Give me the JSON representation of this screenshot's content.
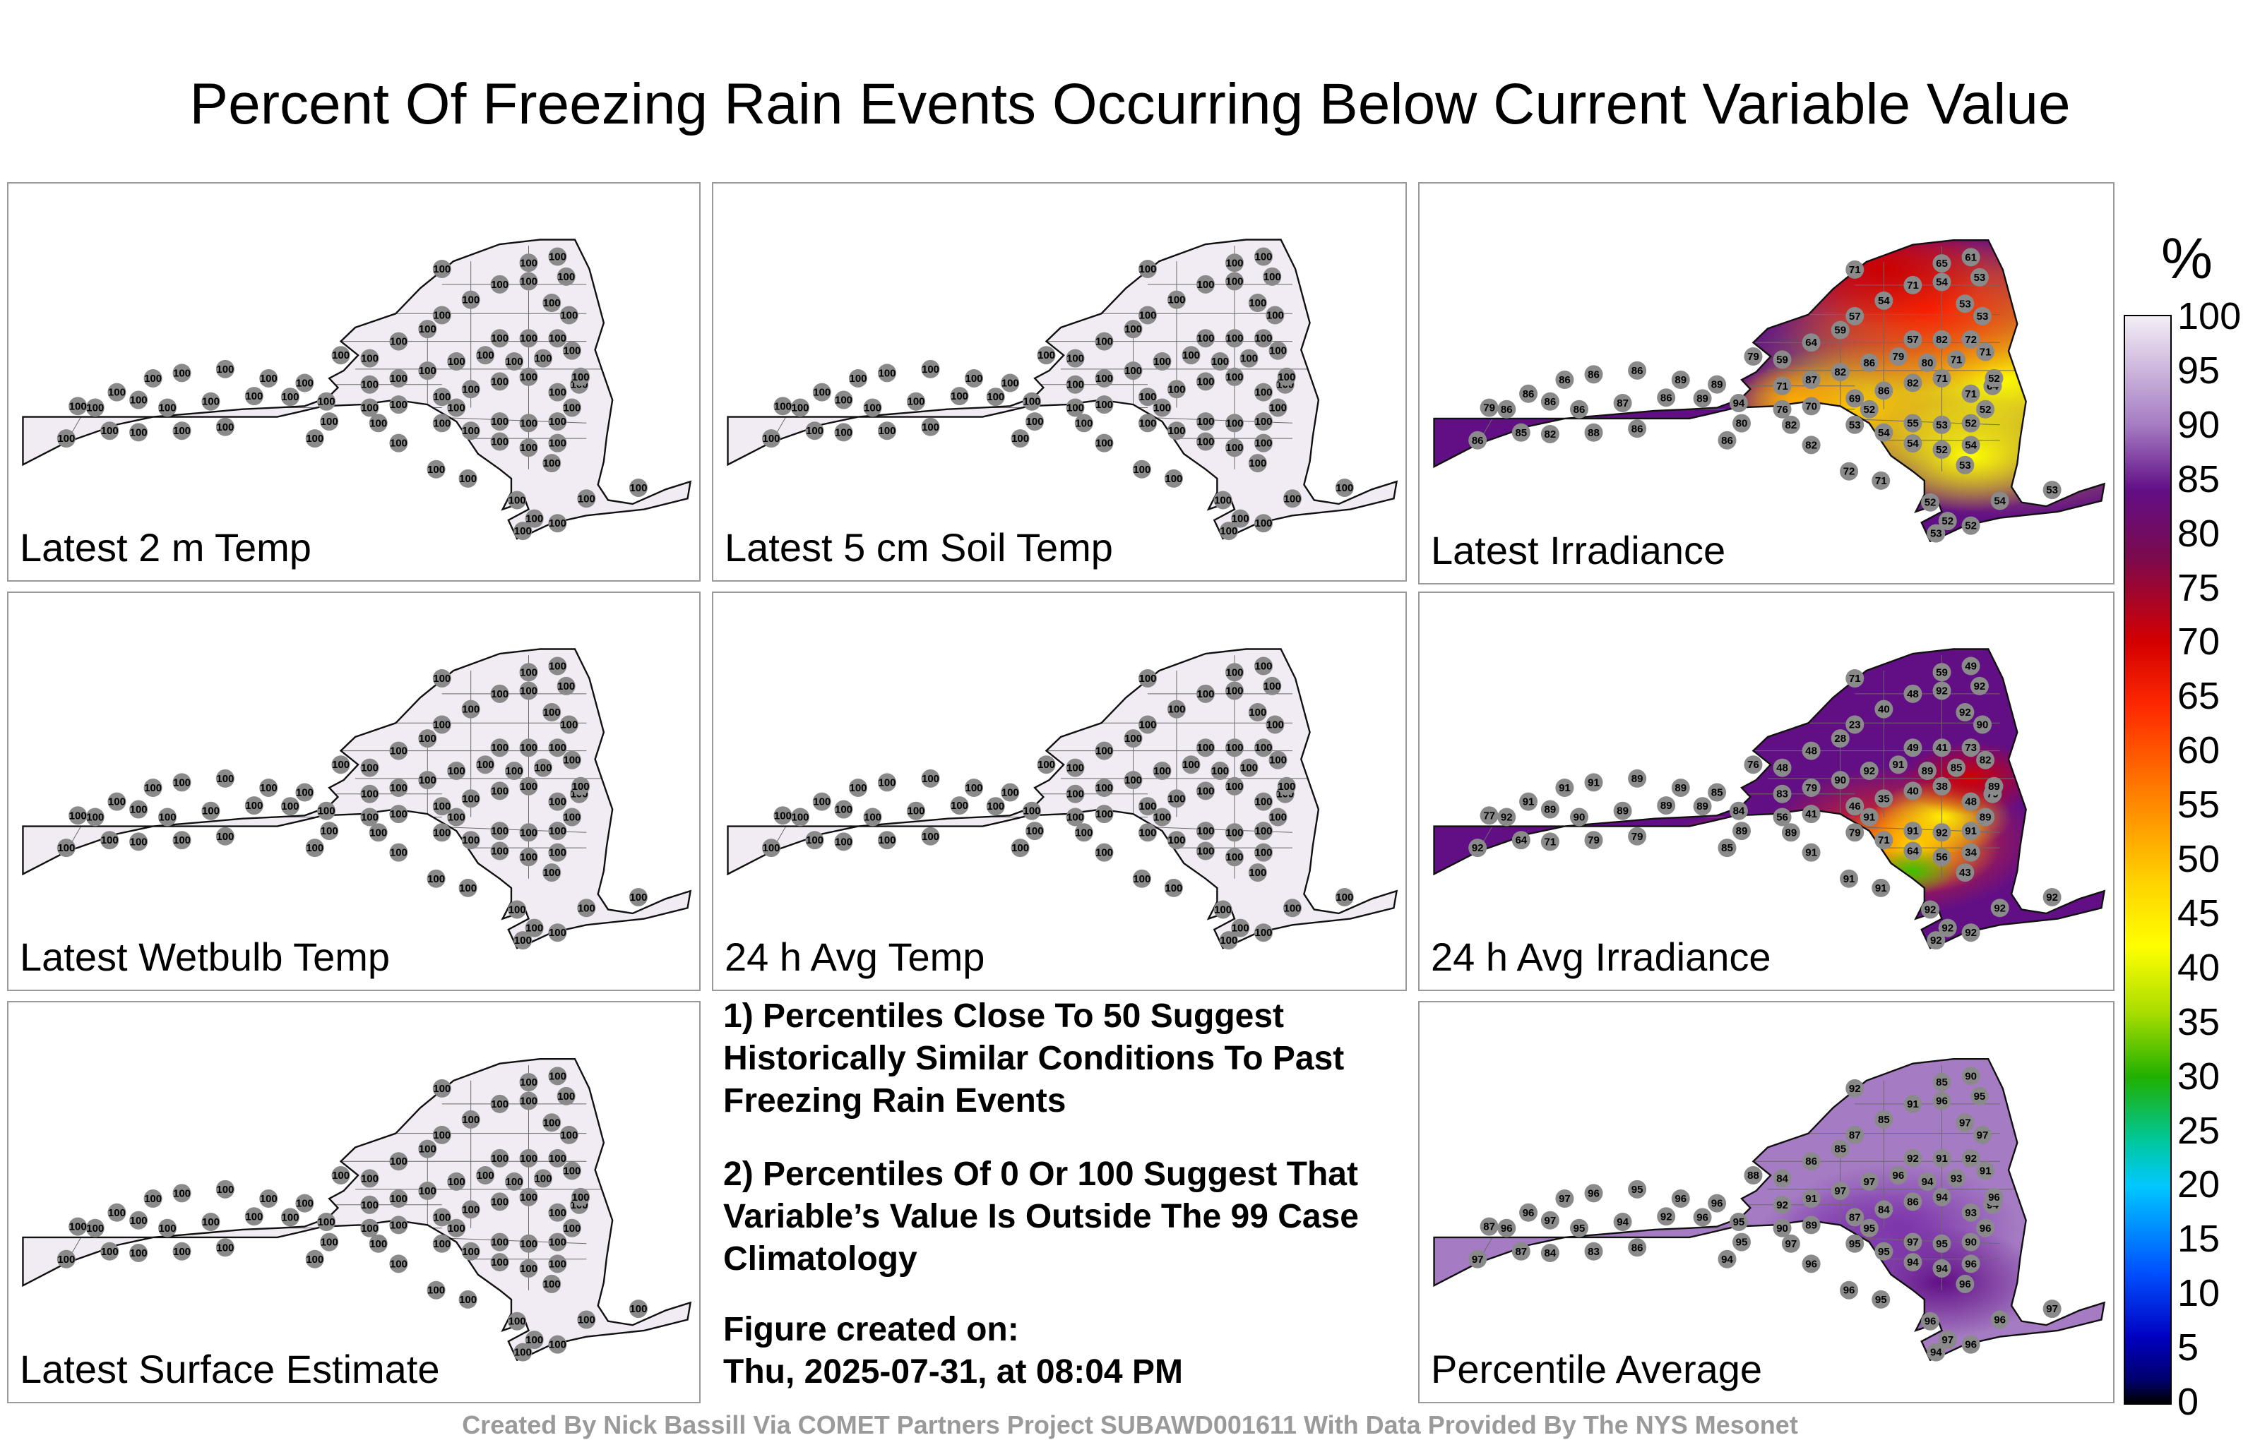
{
  "title": "Percent Of Freezing Rain Events Occurring Below Current Variable Value",
  "colorbar": {
    "unit": "%",
    "ticks": [
      "100",
      "95",
      "90",
      "85",
      "80",
      "75",
      "70",
      "65",
      "60",
      "55",
      "50",
      "45",
      "40",
      "35",
      "30",
      "25",
      "20",
      "15",
      "10",
      "5",
      "0"
    ]
  },
  "panels": [
    {
      "id": "p1",
      "label": "Latest 2 m Temp",
      "colormode": "flat",
      "fill": "#f1ecf3",
      "default": 100,
      "labels": []
    },
    {
      "id": "p2",
      "label": "Latest 5 cm Soil Temp",
      "colormode": "flat",
      "fill": "#f1ecf3",
      "default": 100,
      "labels": []
    },
    {
      "id": "p3",
      "label": "Latest Irradiance",
      "colormode": "zoned",
      "fill": "#620f86",
      "labels": [
        "86",
        "86",
        "86",
        "86",
        "86",
        "86",
        "89",
        "89",
        "86",
        "86",
        "87",
        "86",
        "89",
        "94",
        "79",
        "85",
        "82",
        "88",
        "86",
        "79",
        "59",
        "64",
        "59",
        "57",
        "54",
        "71",
        "65",
        "61",
        "71",
        "57",
        "82",
        "72",
        "71",
        "87",
        "82",
        "86",
        "79",
        "80",
        "71",
        "71",
        "76",
        "70",
        "69",
        "86",
        "82",
        "71",
        "71",
        "64",
        "53",
        "54",
        "54",
        "52",
        "53",
        "54",
        "53",
        "55",
        "52",
        "52",
        "52",
        "52",
        "53",
        "53",
        "54",
        "53",
        "53",
        "52",
        "52",
        "54",
        "53",
        "52",
        "71",
        "72",
        "82",
        "82",
        "80"
      ]
    },
    {
      "id": "p4",
      "label": "Latest Wetbulb Temp",
      "colormode": "flat",
      "fill": "#f1ecf3",
      "default": 100,
      "labels": []
    },
    {
      "id": "p5",
      "label": "24 h Avg Temp",
      "colormode": "flat",
      "fill": "#f1ecf3",
      "default": 100,
      "labels": []
    },
    {
      "id": "p6",
      "label": "24 h Avg Irradiance",
      "colormode": "zoned2",
      "fill": "#620f86",
      "labels": [
        "92",
        "92",
        "91",
        "91",
        "91",
        "89",
        "89",
        "85",
        "89",
        "90",
        "89",
        "89",
        "89",
        "84",
        "77",
        "64",
        "71",
        "79",
        "79",
        "76",
        "48",
        "48",
        "28",
        "23",
        "40",
        "48",
        "59",
        "49",
        "71",
        "49",
        "41",
        "73",
        "83",
        "79",
        "90",
        "92",
        "91",
        "89",
        "85",
        "82",
        "56",
        "41",
        "46",
        "35",
        "40",
        "38",
        "48",
        "79",
        "79",
        "71",
        "64",
        "56",
        "43",
        "34",
        "92",
        "91",
        "91",
        "91",
        "89",
        "89",
        "90",
        "92",
        "92",
        "92",
        "92",
        "92",
        "92",
        "92"
      ]
    },
    {
      "id": "p7",
      "label": "Latest Surface Estimate",
      "colormode": "flat",
      "fill": "#f1ecf3",
      "default": 100,
      "labels": []
    },
    {
      "id": "p9",
      "label": "Percentile Average",
      "colormode": "zoned3",
      "fill": "#a57cc3",
      "labels": [
        "97",
        "96",
        "96",
        "97",
        "96",
        "95",
        "96",
        "96",
        "97",
        "95",
        "94",
        "92",
        "96",
        "95",
        "87",
        "87",
        "84",
        "83",
        "86",
        "88",
        "84",
        "86",
        "85",
        "87",
        "85",
        "91",
        "85",
        "90",
        "92",
        "92",
        "91",
        "92",
        "92",
        "91",
        "97",
        "97",
        "96",
        "94",
        "93",
        "91",
        "90",
        "89",
        "87",
        "84",
        "86",
        "94",
        "93",
        "94",
        "95",
        "95",
        "94",
        "94",
        "96",
        "96",
        "95",
        "97",
        "95",
        "90",
        "96",
        "96",
        "97",
        "97",
        "96",
        "95",
        "94"
      ]
    }
  ],
  "notes": [
    "1) Percentiles Close To 50 Suggest Historically Similar Conditions To Past Freezing Rain Events",
    "2) Percentiles Of 0 Or 100 Suggest That Variable’s Value Is Outside The 99 Case Climatology"
  ],
  "created_label": "Figure created on:",
  "created_value": "Thu, 2025-07-31, at 08:04 PM",
  "credit": "Created By Nick Bassill Via COMET Partners Project SUBAWD001611 With Data Provided By The NYS Mesonet"
}
